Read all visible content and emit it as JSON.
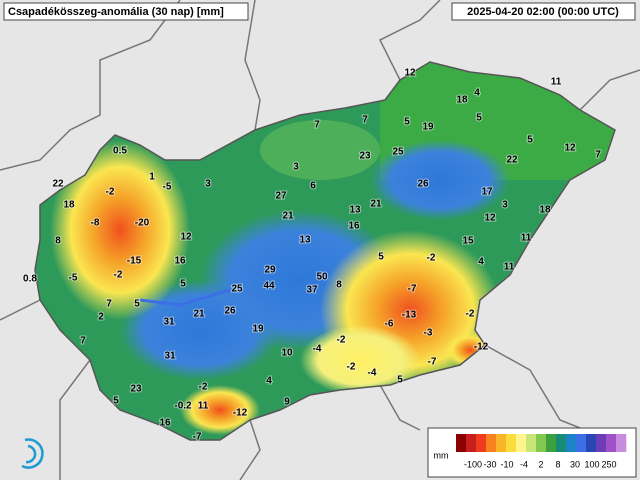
{
  "header": {
    "title": "Csapadékösszeg-anomália (30 nap) [mm]",
    "timestamp": "2025-04-20 02:00 (00:00 UTC)"
  },
  "stations": [
    12,
    11,
    18,
    4,
    5,
    7,
    7,
    5,
    19,
    5,
    12,
    7,
    0.5,
    22,
    23,
    25,
    3,
    1,
    -5,
    3,
    6,
    26,
    17,
    22,
    -2,
    27,
    18,
    -8,
    -20,
    21,
    13,
    21,
    3,
    18,
    12,
    12,
    16,
    13,
    15,
    11,
    8,
    -15,
    16,
    5,
    -2,
    4,
    11,
    -5,
    0.8,
    -2,
    29,
    50,
    5,
    44,
    25,
    37,
    8,
    -7,
    7,
    5,
    2,
    21,
    26,
    -13,
    -2,
    31,
    -6,
    19,
    -3,
    -2,
    7,
    -4,
    -12,
    10,
    31,
    -2,
    -7,
    -4,
    4,
    5,
    -2,
    23,
    5,
    9,
    -0.2,
    11,
    -12,
    16,
    -7
  ],
  "legend": {
    "unit": "mm",
    "ticks": [
      -100,
      -30,
      -10,
      -4,
      2,
      8,
      30,
      100,
      250
    ],
    "colors": [
      "#8b0000",
      "#c81e1e",
      "#f03c1e",
      "#f5821e",
      "#fab428",
      "#fadc3c",
      "#fff58c",
      "#c8e678",
      "#82c850",
      "#3ca03c",
      "#148c78",
      "#1e82c8",
      "#3c6ee6",
      "#2846b4",
      "#6e3cb4",
      "#a050c8",
      "#c88cdc"
    ]
  }
}
